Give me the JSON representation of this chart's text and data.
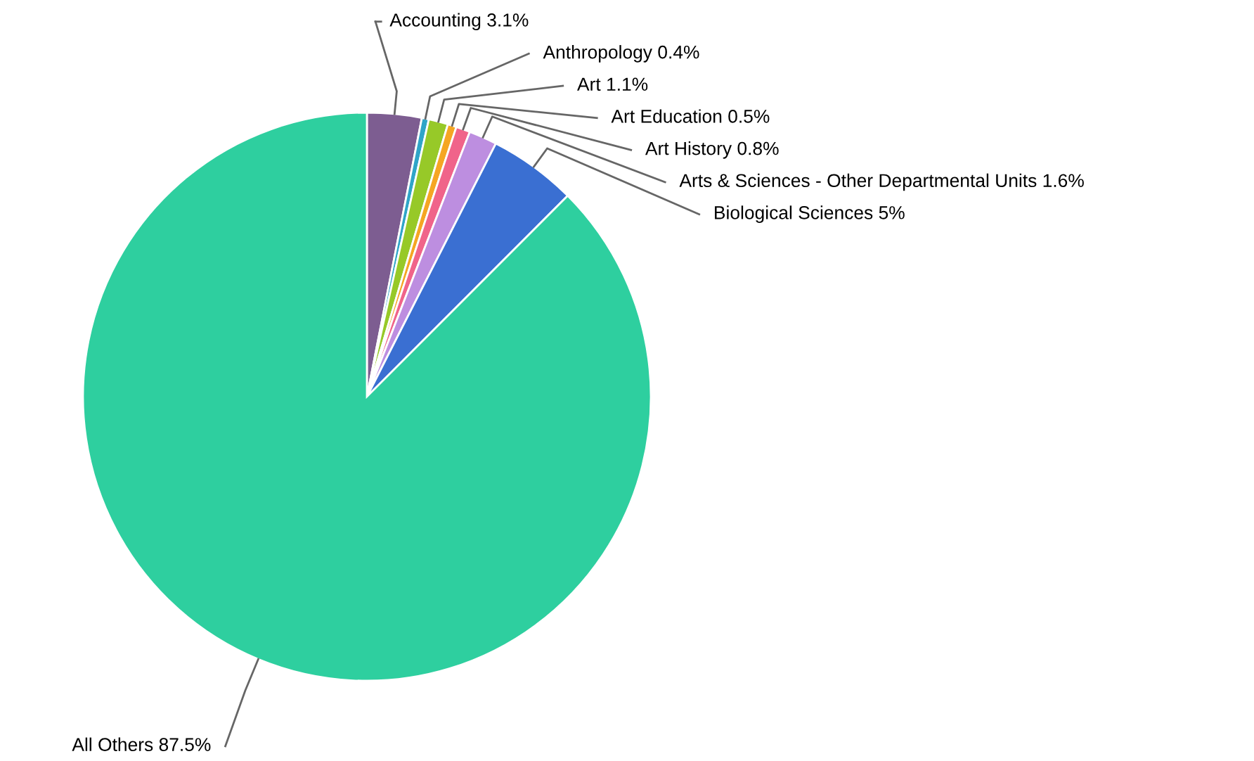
{
  "chart_data": {
    "type": "pie",
    "categories": [
      "Accounting",
      "Anthropology",
      "Art",
      "Art Education",
      "Art History",
      "Arts & Sciences - Other Departmental Units",
      "Biological Sciences",
      "All Others"
    ],
    "values": [
      3.1,
      0.4,
      1.1,
      0.5,
      0.8,
      1.6,
      5,
      87.5
    ],
    "value_labels": [
      "3.1%",
      "0.4%",
      "1.1%",
      "0.5%",
      "0.8%",
      "1.6%",
      "5%",
      "87.5%"
    ],
    "colors": [
      "#7d5d91",
      "#2fa5c8",
      "#97c928",
      "#f5a623",
      "#f0648a",
      "#bd8ee0",
      "#3a6fd2",
      "#2ecf9f"
    ],
    "legend": false
  }
}
